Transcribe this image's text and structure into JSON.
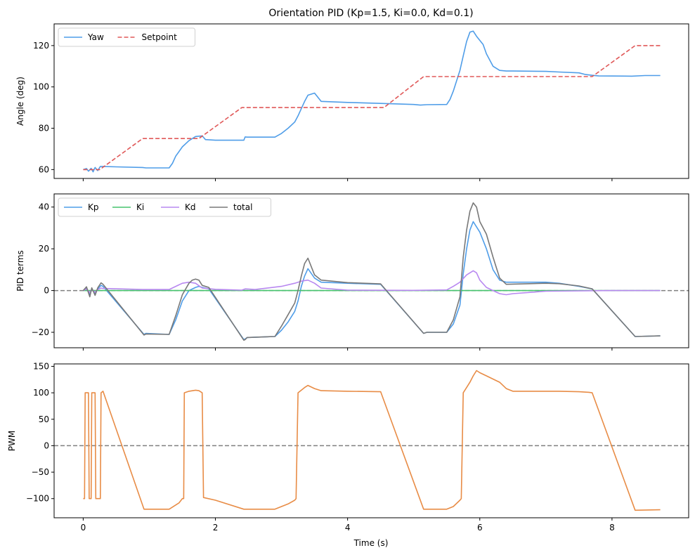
{
  "figure": {
    "title": "Orientation PID  (Kp=1.5, Ki=0.0, Kd=0.1)",
    "xlabel": "Time (s)"
  },
  "chart_data": [
    {
      "id": "angle",
      "type": "line",
      "ylabel": "Angle (deg)",
      "xlim": [
        -0.44,
        9.16
      ],
      "ylim": [
        55.7,
        130.5
      ],
      "xticks": [
        0,
        2,
        4,
        6,
        8
      ],
      "yticks": [
        60,
        80,
        100,
        120
      ],
      "show_xtick_labels": false,
      "zero_line": false,
      "legend": {
        "placement": "top-left",
        "columns": 2
      },
      "series": [
        {
          "name": "Yaw",
          "color": "#4f9de8",
          "dash": false,
          "x": [
            0,
            0.05,
            0.08,
            0.12,
            0.15,
            0.18,
            0.22,
            0.26,
            0.3,
            0.5,
            0.9,
            0.95,
            1.3,
            1.35,
            1.4,
            1.5,
            1.6,
            1.7,
            1.8,
            1.85,
            2.0,
            2.43,
            2.45,
            2.48,
            2.9,
            3.0,
            3.1,
            3.2,
            3.25,
            3.3,
            3.35,
            3.4,
            3.5,
            3.6,
            4.0,
            4.5,
            5.0,
            5.1,
            5.2,
            5.5,
            5.55,
            5.6,
            5.65,
            5.7,
            5.75,
            5.8,
            5.85,
            5.9,
            5.95,
            6.0,
            6.05,
            6.1,
            6.2,
            6.3,
            6.4,
            6.5,
            7.0,
            7.2,
            7.5,
            7.6,
            7.7,
            7.8,
            8.3,
            8.5,
            8.73
          ],
          "y": [
            60,
            60.5,
            59.2,
            60.6,
            58.9,
            61,
            59.5,
            61.5,
            61.5,
            61.3,
            61,
            60.8,
            60.8,
            63,
            66.5,
            71,
            74,
            76,
            76.3,
            74.5,
            74.2,
            74.2,
            75.8,
            75.7,
            75.7,
            77.5,
            80,
            83,
            86,
            89.5,
            93,
            96,
            97,
            93,
            92.5,
            92,
            91.5,
            91.2,
            91.4,
            91.5,
            94,
            98,
            103,
            108,
            115,
            122,
            126.5,
            127,
            124.5,
            122.5,
            120.5,
            116,
            110,
            108,
            107.7,
            107.7,
            107.5,
            107.2,
            106.8,
            106,
            105.6,
            105.3,
            105.2,
            105.5,
            105.5
          ]
        },
        {
          "name": "Setpoint",
          "color": "#e05858",
          "dash": true,
          "x": [
            0,
            0.25,
            0.9,
            1.75,
            2.4,
            4.55,
            5.15,
            7.7,
            8.35,
            8.73
          ],
          "y": [
            60,
            60,
            75,
            75,
            90,
            90,
            105,
            105,
            120,
            120
          ]
        }
      ]
    },
    {
      "id": "pid",
      "type": "line",
      "ylabel": "PID terms",
      "xlim": [
        -0.44,
        9.16
      ],
      "ylim": [
        -27.4,
        46.3
      ],
      "xticks": [
        0,
        2,
        4,
        6,
        8
      ],
      "yticks": [
        -20,
        0,
        20,
        40
      ],
      "show_xtick_labels": false,
      "zero_line": true,
      "legend": {
        "placement": "top-left",
        "columns": 4
      },
      "series": [
        {
          "name": "Kp",
          "color": "#4f9de8",
          "dash": false,
          "x": [
            0,
            0.05,
            0.1,
            0.13,
            0.18,
            0.22,
            0.27,
            0.3,
            0.92,
            0.95,
            1.3,
            1.4,
            1.5,
            1.6,
            1.7,
            1.75,
            1.8,
            1.9,
            2.43,
            2.45,
            2.48,
            2.9,
            3.0,
            3.1,
            3.2,
            3.25,
            3.3,
            3.35,
            3.4,
            3.5,
            3.6,
            4.0,
            4.5,
            5.15,
            5.2,
            5.5,
            5.6,
            5.7,
            5.75,
            5.8,
            5.85,
            5.9,
            5.95,
            6.0,
            6.1,
            6.2,
            6.3,
            6.4,
            7.0,
            7.2,
            7.5,
            7.7,
            8.35,
            8.73
          ],
          "y": [
            0,
            1,
            -2,
            0.8,
            -1.5,
            0.8,
            2.5,
            2,
            -21,
            -20.5,
            -21,
            -14,
            -5,
            0,
            1.5,
            2,
            1.5,
            0.8,
            -23.5,
            -23.2,
            -22.5,
            -22,
            -19,
            -15,
            -10,
            -5,
            2,
            7,
            10.5,
            6,
            4,
            3.5,
            3,
            -20.5,
            -20,
            -20,
            -16,
            -7,
            8,
            20,
            29,
            33,
            30.5,
            28,
            20,
            10,
            5,
            4,
            4,
            3.5,
            2,
            0.8,
            -22,
            -21.7
          ]
        },
        {
          "name": "Ki",
          "color": "#46c46e",
          "dash": false,
          "x": [
            0,
            8.73
          ],
          "y": [
            0,
            0
          ]
        },
        {
          "name": "Kd",
          "color": "#b888f0",
          "dash": false,
          "x": [
            0,
            0.05,
            0.1,
            0.13,
            0.18,
            0.22,
            0.27,
            0.3,
            0.9,
            1.3,
            1.4,
            1.5,
            1.6,
            1.7,
            1.8,
            2.0,
            2.4,
            2.45,
            2.6,
            3.0,
            3.2,
            3.3,
            3.4,
            3.5,
            3.6,
            4.0,
            5.0,
            5.5,
            5.6,
            5.7,
            5.8,
            5.9,
            5.95,
            6.0,
            6.1,
            6.2,
            6.3,
            6.4,
            6.5,
            7.0,
            8.0,
            8.73
          ],
          "y": [
            0,
            0.8,
            -1,
            0.5,
            -0.8,
            0.5,
            1.2,
            1,
            0.5,
            0.5,
            2,
            3.5,
            4,
            3.5,
            1.2,
            0.6,
            0.2,
            0.8,
            0.5,
            2,
            3.5,
            4.5,
            5,
            3.5,
            1.2,
            0.2,
            0.1,
            0.3,
            2,
            4,
            7.5,
            9.5,
            8.5,
            5,
            1.5,
            0,
            -1.5,
            -2,
            -1.5,
            -0.3,
            0,
            0
          ]
        },
        {
          "name": "total",
          "color": "#787878",
          "dash": false,
          "x": [
            0,
            0.05,
            0.1,
            0.13,
            0.18,
            0.22,
            0.27,
            0.3,
            0.92,
            0.95,
            1.3,
            1.4,
            1.5,
            1.6,
            1.65,
            1.7,
            1.75,
            1.8,
            1.9,
            2.43,
            2.45,
            2.48,
            2.9,
            3.0,
            3.1,
            3.2,
            3.25,
            3.3,
            3.35,
            3.4,
            3.5,
            3.6,
            4.0,
            4.5,
            5.15,
            5.2,
            5.5,
            5.6,
            5.7,
            5.75,
            5.8,
            5.85,
            5.9,
            5.95,
            6.0,
            6.1,
            6.2,
            6.3,
            6.4,
            7.0,
            7.2,
            7.5,
            7.7,
            8.35,
            8.73
          ],
          "y": [
            0,
            1.8,
            -3,
            1.3,
            -2.3,
            1.3,
            3.7,
            3,
            -21.3,
            -20.8,
            -21,
            -12,
            -2,
            3.5,
            5,
            5.5,
            5,
            2.5,
            1.5,
            -23.8,
            -23.5,
            -22.5,
            -22,
            -17,
            -11.5,
            -6,
            0,
            7,
            13,
            15.5,
            7.5,
            5,
            3.8,
            3.2,
            -20.5,
            -20,
            -20,
            -14,
            -3,
            16,
            29,
            38,
            42,
            40,
            33,
            27,
            16,
            6,
            3,
            3.5,
            3.3,
            2.2,
            0.8,
            -22,
            -21.7
          ]
        }
      ]
    },
    {
      "id": "pwm",
      "type": "line",
      "ylabel": "PWM",
      "xlim": [
        -0.44,
        9.16
      ],
      "ylim": [
        -136.2,
        154.6
      ],
      "xticks": [
        0,
        2,
        4,
        6,
        8
      ],
      "yticks": [
        -100,
        -50,
        0,
        50,
        100,
        150
      ],
      "show_xtick_labels": true,
      "zero_line": true,
      "legend": null,
      "series": [
        {
          "name": "",
          "color": "#e88c46",
          "dash": false,
          "x": [
            0,
            0.02,
            0.03,
            0.08,
            0.09,
            0.12,
            0.13,
            0.18,
            0.19,
            0.26,
            0.27,
            0.3,
            0.92,
            1.3,
            1.45,
            1.5,
            1.52,
            1.53,
            1.6,
            1.7,
            1.75,
            1.8,
            1.82,
            2.0,
            2.43,
            2.5,
            2.9,
            3.0,
            3.1,
            3.2,
            3.22,
            3.25,
            3.35,
            3.4,
            3.5,
            3.6,
            4.0,
            4.5,
            5.15,
            5.3,
            5.5,
            5.6,
            5.7,
            5.72,
            5.75,
            5.8,
            5.85,
            5.9,
            5.95,
            6.0,
            6.1,
            6.3,
            6.4,
            6.5,
            7.0,
            7.2,
            7.5,
            7.65,
            7.7,
            8.35,
            8.73
          ],
          "y": [
            -100,
            -100,
            100,
            100,
            -100,
            -100,
            100,
            100,
            -100,
            -100,
            100,
            103,
            -120,
            -120,
            -108,
            -100,
            -100,
            100,
            103,
            105,
            104,
            100,
            -98,
            -103,
            -120,
            -120,
            -120,
            -115,
            -110,
            -103,
            -100,
            100,
            110,
            114,
            108,
            104,
            103,
            102,
            -120,
            -120,
            -120,
            -115,
            -103,
            -100,
            100,
            110,
            120,
            132,
            142,
            138,
            132,
            120,
            108,
            103,
            103,
            103,
            102,
            101,
            100,
            -122,
            -121
          ]
        }
      ]
    }
  ]
}
